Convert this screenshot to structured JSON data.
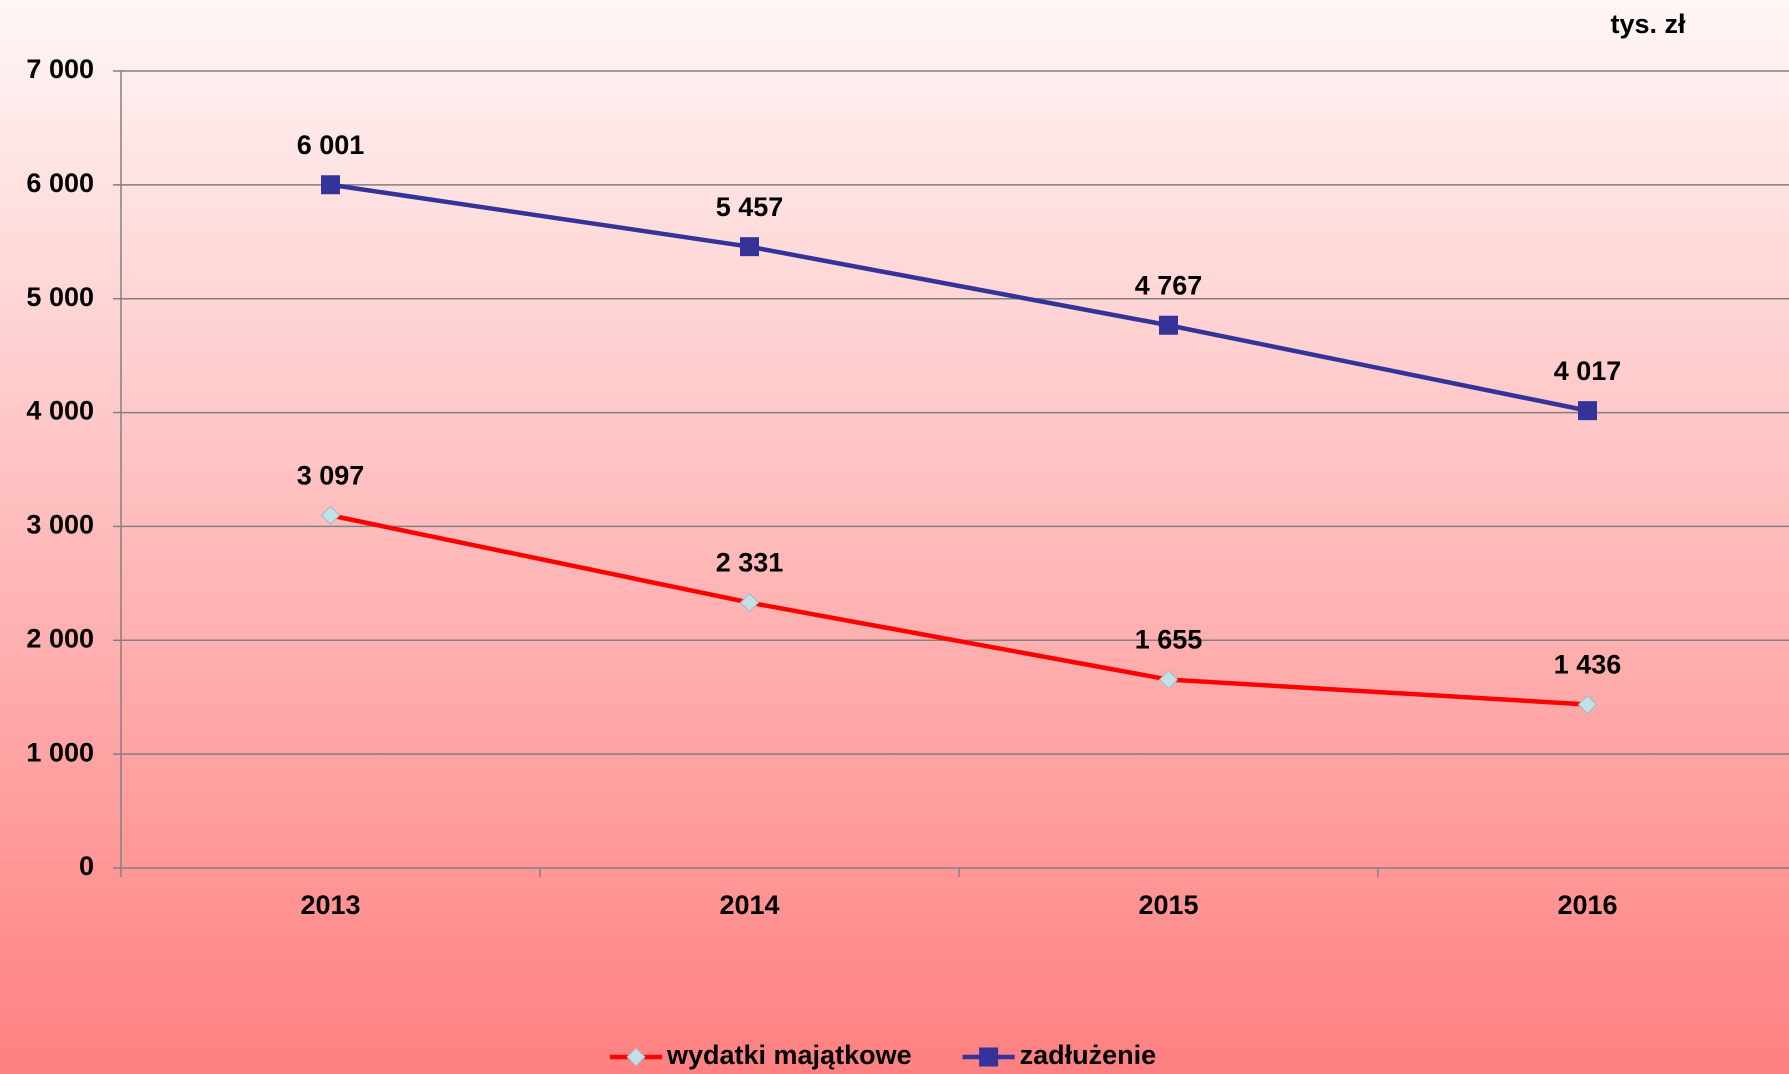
{
  "chart_data": {
    "type": "line",
    "unit": "tys. zł",
    "categories": [
      "2013",
      "2014",
      "2015",
      "2016"
    ],
    "series": [
      {
        "name": "wydatki majątkowe",
        "color": "#ff0000",
        "marker": "diamond",
        "marker_color": "#c4e0e6",
        "values": [
          3097,
          2331,
          1655,
          1436
        ],
        "value_labels": [
          "3 097",
          "2 331",
          "1 655",
          "1 436"
        ]
      },
      {
        "name": "zadłużenie",
        "color": "#333399",
        "marker": "square",
        "marker_color": "#333399",
        "values": [
          6001,
          5457,
          4767,
          4017
        ],
        "value_labels": [
          "6 001",
          "5 457",
          "4 767",
          "4 017"
        ]
      }
    ],
    "ylim": [
      0,
      7000
    ],
    "yticks": [
      0,
      {
        "value": 1000,
        "label": "1 000"
      },
      {
        "value": 2000,
        "label": "2 000"
      },
      {
        "value": 3000,
        "label": "3 000"
      },
      {
        "value": 4000,
        "label": "4 000"
      },
      {
        "value": 5000,
        "label": "5 000"
      },
      {
        "value": 6000,
        "label": "6 000"
      },
      {
        "value": 7000,
        "label": "7 000"
      }
    ],
    "grid": true,
    "legend": "bottom"
  }
}
